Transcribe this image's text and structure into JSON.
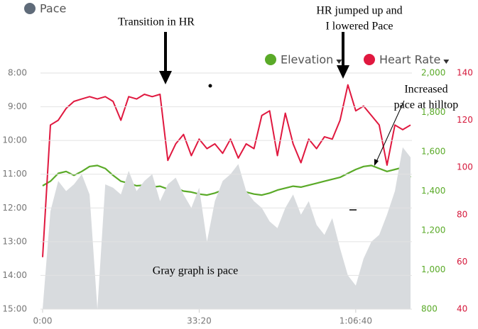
{
  "chart_data": {
    "type": "line",
    "x": [
      0,
      100,
      200,
      300,
      400,
      500,
      600,
      700,
      800,
      900,
      1000,
      1100,
      1200,
      1300,
      1400,
      1500,
      1600,
      1700,
      1800,
      1900,
      2000,
      2100,
      2200,
      2300,
      2400,
      2500,
      2600,
      2700,
      2800,
      2900,
      3000,
      3100,
      3200,
      3300,
      3400,
      3500,
      3600,
      3700,
      3800,
      3900,
      4000,
      4100,
      4200,
      4300,
      4400,
      4500,
      4600,
      4700
    ],
    "xlim": [
      0,
      4700
    ],
    "xticks": [
      {
        "value": 0,
        "label": "0:00"
      },
      {
        "value": 2000,
        "label": "33:20"
      },
      {
        "value": 4000,
        "label": "1:06:40"
      }
    ],
    "ylim": [
      15,
      8
    ],
    "yticks": [
      {
        "value": 8,
        "label": "8:00"
      },
      {
        "value": 9,
        "label": "9:00"
      },
      {
        "value": 10,
        "label": "10:00"
      },
      {
        "value": 11,
        "label": "11:00"
      },
      {
        "value": 12,
        "label": "12:00"
      },
      {
        "value": 13,
        "label": "13:00"
      },
      {
        "value": 14,
        "label": "14:00"
      },
      {
        "value": 15,
        "label": "15:00"
      }
    ],
    "y2lim": [
      800,
      2000
    ],
    "y2ticks": [
      {
        "value": 2000,
        "label": "2,000"
      },
      {
        "value": 1800,
        "label": "1,800"
      },
      {
        "value": 1600,
        "label": "1,600"
      },
      {
        "value": 1400,
        "label": "1,400"
      },
      {
        "value": 1200,
        "label": "1,200"
      },
      {
        "value": 1000,
        "label": "1,000"
      },
      800
    ],
    "y3lim": [
      40,
      140
    ],
    "y3ticks": [
      140,
      120,
      100,
      80,
      60,
      40
    ],
    "grid": true,
    "series": [
      {
        "name": "Pace",
        "color": "#d8dbde",
        "fill": "area",
        "values": [
          15,
          12.1,
          11.2,
          11.5,
          11.3,
          11.0,
          11.6,
          15,
          11.3,
          11.4,
          11.6,
          10.9,
          11.5,
          11.2,
          11.0,
          11.8,
          11.3,
          11.1,
          11.6,
          12.0,
          11.4,
          13.0,
          11.8,
          11.2,
          11.0,
          10.7,
          11.5,
          11.8,
          12.0,
          12.4,
          12.6,
          12.0,
          11.6,
          12.2,
          11.8,
          12.5,
          12.8,
          12.3,
          13.2,
          14.0,
          14.3,
          13.5,
          13.0,
          12.8,
          12.2,
          11.5,
          10.2,
          10.5
        ]
      },
      {
        "name": "Elevation",
        "color": "#5aaa28",
        "axis": "y2",
        "values": [
          1427,
          1450,
          1490,
          1500,
          1480,
          1500,
          1525,
          1530,
          1515,
          1480,
          1450,
          1440,
          1427,
          1430,
          1420,
          1425,
          1410,
          1415,
          1400,
          1395,
          1385,
          1380,
          1390,
          1405,
          1415,
          1410,
          1395,
          1385,
          1380,
          1390,
          1405,
          1415,
          1425,
          1420,
          1430,
          1440,
          1450,
          1460,
          1470,
          1490,
          1510,
          1525,
          1530,
          1515,
          1500,
          1510,
          1520,
          1470
        ]
      },
      {
        "name": "Heart Rate",
        "color": "#e0183f",
        "axis": "y3",
        "values": [
          62,
          118,
          120,
          125,
          128,
          129,
          130,
          129,
          130,
          128,
          120,
          130,
          129,
          131,
          130,
          131,
          103,
          110,
          114,
          105,
          112,
          108,
          110,
          106,
          112,
          104,
          110,
          108,
          122,
          124,
          105,
          123,
          110,
          102,
          112,
          108,
          113,
          112,
          120,
          135,
          124,
          126,
          122,
          118,
          101,
          118,
          116,
          118
        ]
      }
    ],
    "annotations": [
      [
        "Transition in HR"
      ],
      [
        "HR jumped up and",
        "I lowered Pace"
      ],
      [
        "Increased",
        "pace at hilltop"
      ],
      [
        "Gray graph is pace"
      ]
    ]
  }
}
